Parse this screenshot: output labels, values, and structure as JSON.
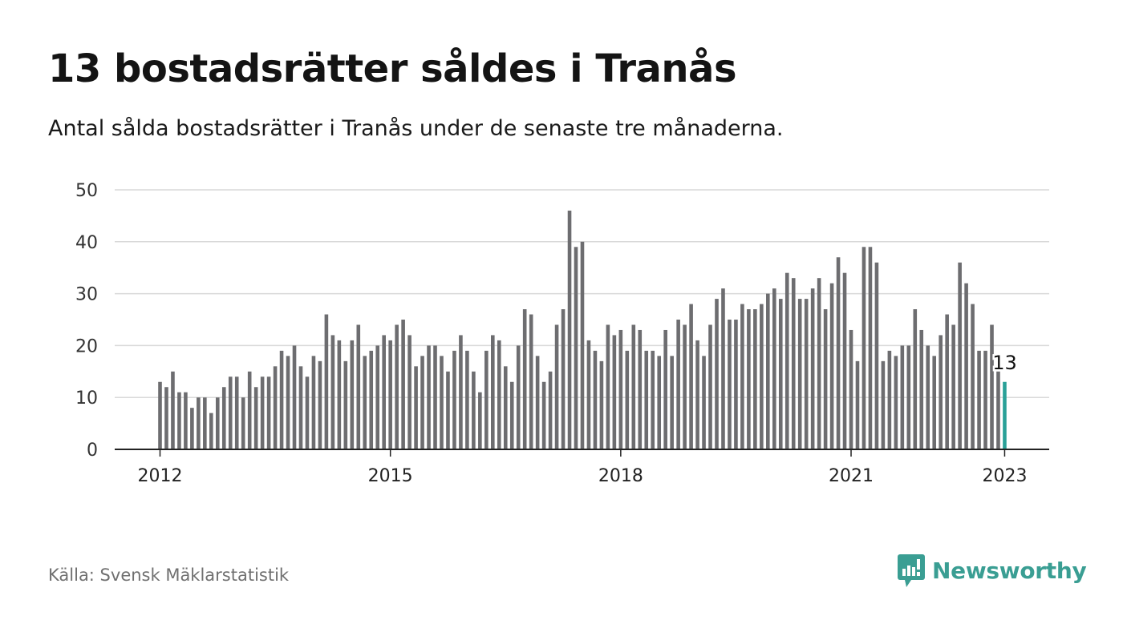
{
  "header": {
    "title": "13 bostadsrätter såldes i Tranås",
    "subtitle": "Antal sålda bostadsrätter i Tranås under de senaste tre månaderna."
  },
  "footer": {
    "source": "Källa: Svensk Mäklarstatistik",
    "brand": "Newsworthy"
  },
  "colors": {
    "bar": "#6d6d70",
    "highlight": "#2aa198",
    "grid": "#d9d9d9",
    "axis": "#222222",
    "brand": "#3a9e93"
  },
  "chart_data": {
    "type": "bar",
    "title": "13 bostadsrätter såldes i Tranås",
    "subtitle": "Antal sålda bostadsrätter i Tranås under de senaste tre månaderna.",
    "xlabel": "",
    "ylabel": "",
    "ylim": [
      0,
      50
    ],
    "yticks": [
      0,
      10,
      20,
      30,
      40,
      50
    ],
    "grid": true,
    "xticks": [
      {
        "label": "2012",
        "index": 0
      },
      {
        "label": "2015",
        "index": 36
      },
      {
        "label": "2018",
        "index": 72
      },
      {
        "label": "2021",
        "index": 108
      },
      {
        "label": "2023",
        "index": 132
      }
    ],
    "x_start": "2012-01",
    "x_end": "2023-01",
    "values": [
      13,
      12,
      15,
      11,
      11,
      8,
      10,
      10,
      7,
      10,
      12,
      14,
      14,
      10,
      15,
      12,
      14,
      14,
      16,
      19,
      18,
      20,
      16,
      14,
      18,
      17,
      26,
      22,
      21,
      17,
      21,
      24,
      18,
      19,
      20,
      22,
      21,
      24,
      25,
      22,
      16,
      18,
      20,
      20,
      18,
      15,
      19,
      22,
      19,
      15,
      11,
      19,
      22,
      21,
      16,
      13,
      20,
      27,
      26,
      18,
      13,
      15,
      24,
      27,
      46,
      39,
      40,
      21,
      19,
      17,
      24,
      22,
      23,
      19,
      24,
      23,
      19,
      19,
      18,
      23,
      18,
      25,
      24,
      28,
      21,
      18,
      24,
      29,
      31,
      25,
      25,
      28,
      27,
      27,
      28,
      30,
      31,
      29,
      34,
      33,
      29,
      29,
      31,
      33,
      27,
      32,
      37,
      34,
      23,
      17,
      39,
      39,
      36,
      17,
      19,
      18,
      20,
      20,
      27,
      23,
      20,
      18,
      22,
      26,
      24,
      36,
      32,
      28,
      19,
      19,
      24,
      15,
      13
    ],
    "highlight_last": true,
    "annotation": "13"
  }
}
